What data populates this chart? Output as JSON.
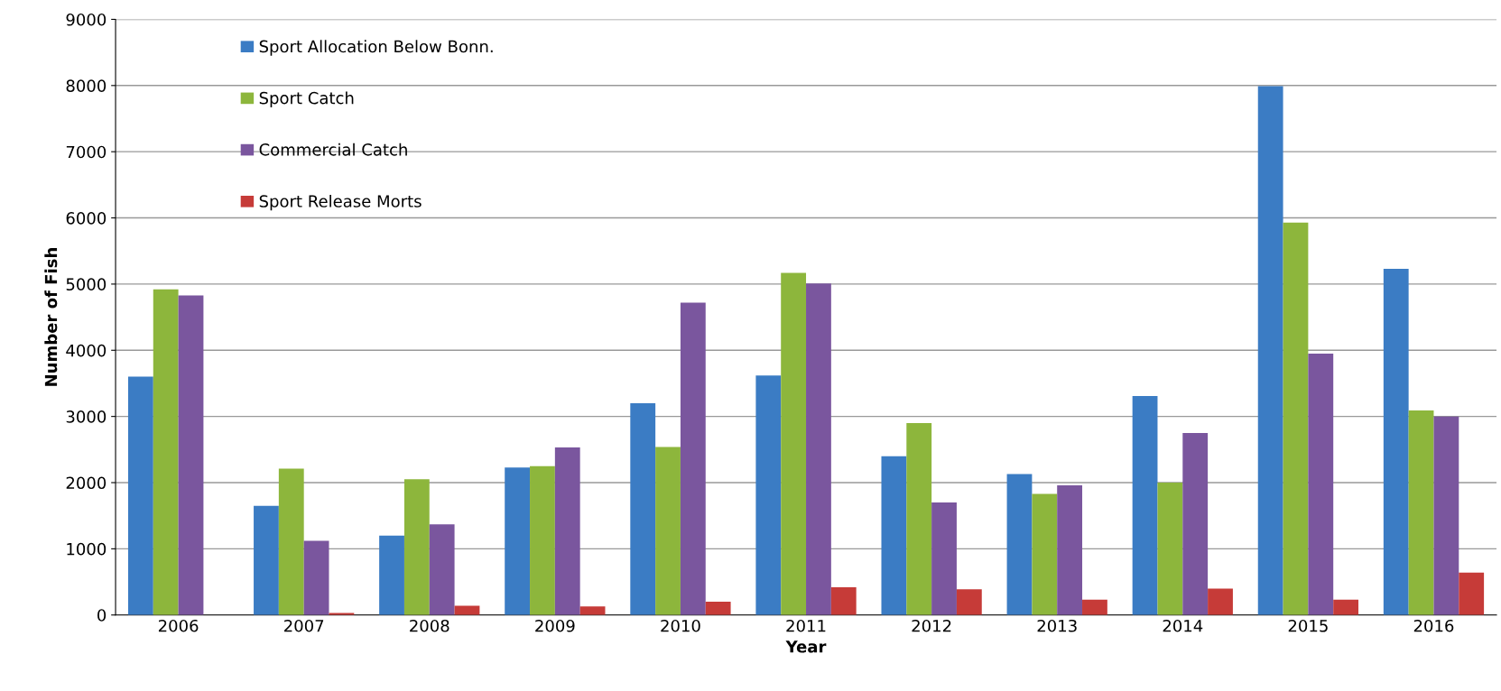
{
  "chart_data": {
    "type": "bar",
    "xlabel": "Year",
    "ylabel": "Number of Fish",
    "categories": [
      "2006",
      "2007",
      "2008",
      "2009",
      "2010",
      "2011",
      "2012",
      "2013",
      "2014",
      "2015",
      "2016"
    ],
    "series": [
      {
        "name": "Sport Allocation Below Bonn.",
        "color": "#3b7cc4",
        "values": [
          3600,
          1650,
          1200,
          2230,
          3200,
          3620,
          2400,
          2130,
          3310,
          7990,
          5230
        ]
      },
      {
        "name": "Sport Catch",
        "color": "#8db63c",
        "values": [
          4920,
          2210,
          2050,
          2250,
          2540,
          5170,
          2900,
          1830,
          2000,
          5930,
          3090
        ]
      },
      {
        "name": "Commercial Catch",
        "color": "#7a569e",
        "values": [
          4830,
          1120,
          1370,
          2530,
          4720,
          5010,
          1700,
          1960,
          2750,
          3950,
          3000
        ]
      },
      {
        "name": "Sport Release Morts",
        "color": "#c63b38",
        "values": [
          0,
          30,
          140,
          130,
          200,
          420,
          390,
          230,
          400,
          230,
          640
        ]
      }
    ],
    "ylim": [
      0,
      9000
    ],
    "yticks": [
      0,
      1000,
      2000,
      3000,
      4000,
      5000,
      6000,
      7000,
      8000,
      9000
    ],
    "grid": "y",
    "legend": "top left"
  }
}
